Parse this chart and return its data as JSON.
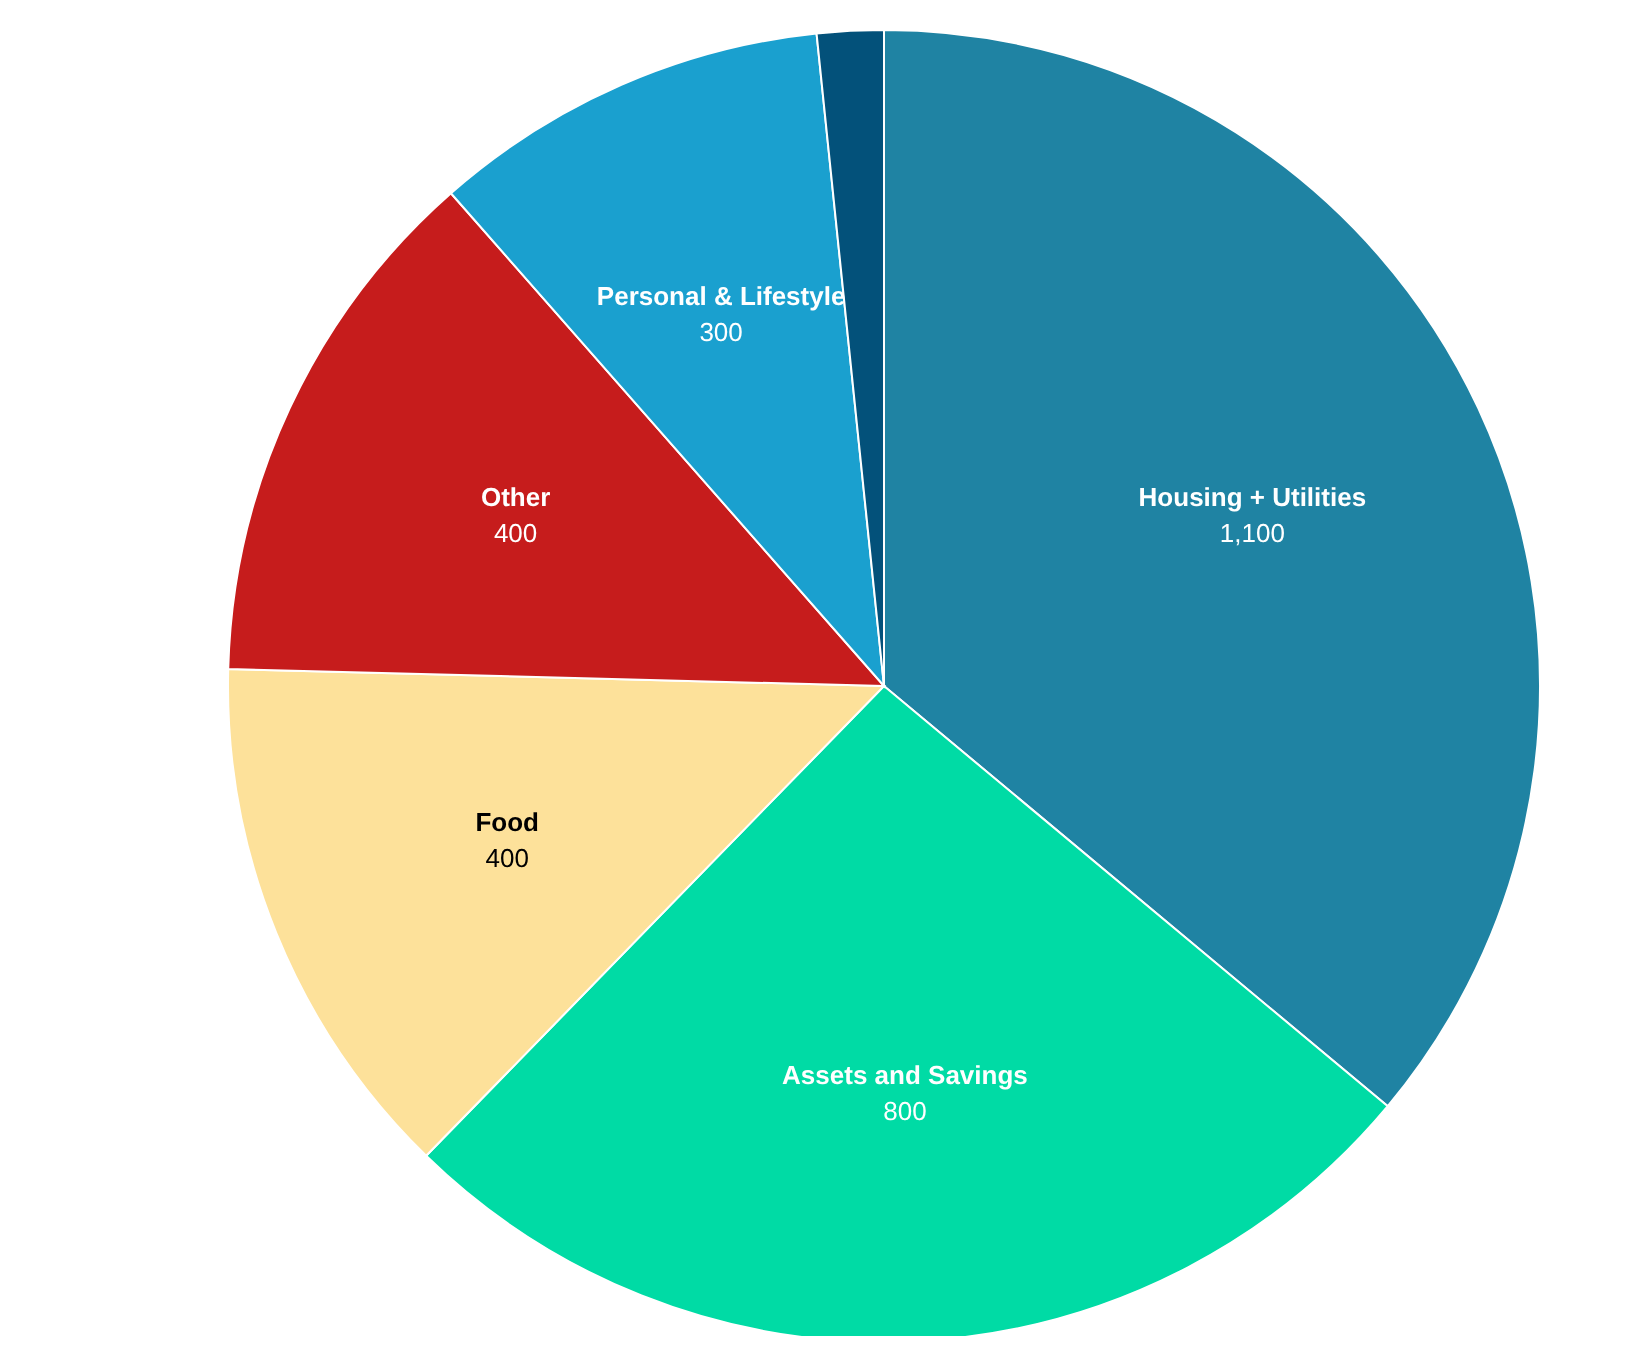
{
  "chart_data": {
    "type": "pie",
    "categories": [
      "Housing + Utilities",
      "Assets and Savings",
      "Food",
      "Other",
      "Personal & Lifestyle",
      null
    ],
    "values": [
      1100,
      800,
      400,
      400,
      300,
      50
    ],
    "value_labels": [
      "1,100",
      "800",
      "400",
      "400",
      "300",
      null
    ],
    "colors": [
      "#1f83a3",
      "#00dba5",
      "#fde19a",
      "#c61c1c",
      "#1aa0cf",
      "#03517a"
    ],
    "legend": false
  }
}
